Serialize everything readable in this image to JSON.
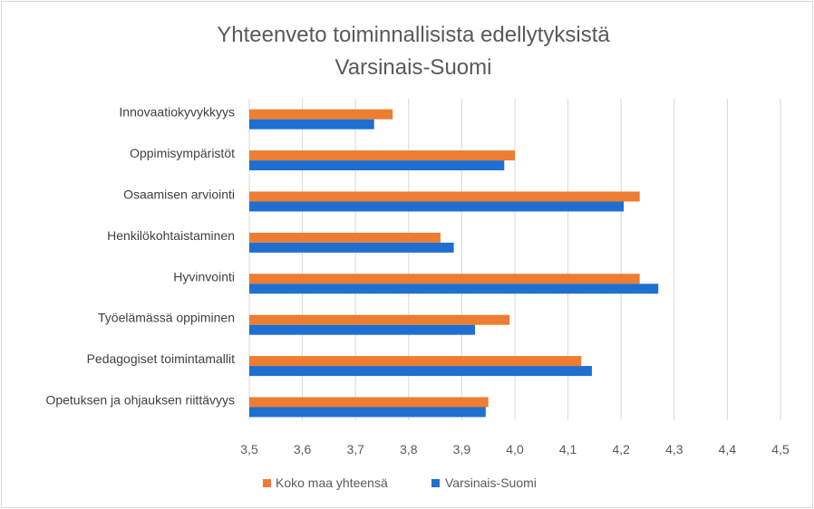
{
  "chart_data": {
    "type": "bar",
    "orientation": "horizontal",
    "title": "Yhteenveto toiminnallisista edellytyksistä",
    "subtitle": "Varsinais-Suomi",
    "categories": [
      "Innovaatiokyvykkyys",
      "Oppimisympäristöt",
      "Osaamisen arviointi",
      "Henkilökohtaistaminen",
      "Hyvinvointi",
      "Työelämässä oppiminen",
      "Pedagogiset toimintamallit",
      "Opetuksen ja ohjauksen riittävyys"
    ],
    "series": [
      {
        "name": "Koko maa yhteensä",
        "color": "#ED7D31",
        "values": [
          3.77,
          4.0,
          4.235,
          3.86,
          4.235,
          3.99,
          4.125,
          3.95
        ]
      },
      {
        "name": "Varsinais-Suomi",
        "color": "#1F6FD0",
        "values": [
          3.735,
          3.98,
          4.205,
          3.885,
          4.27,
          3.925,
          4.145,
          3.945
        ]
      }
    ],
    "xlim": [
      3.5,
      4.5
    ],
    "ticks": [
      3.5,
      3.6,
      3.7,
      3.8,
      3.9,
      4.0,
      4.1,
      4.2,
      4.3,
      4.4,
      4.5
    ],
    "tick_labels": [
      "3,5",
      "3,6",
      "3,7",
      "3,8",
      "3,9",
      "4,0",
      "4,1",
      "4,2",
      "4,3",
      "4,4",
      "4,5"
    ],
    "grid": true,
    "legend_position": "bottom"
  }
}
